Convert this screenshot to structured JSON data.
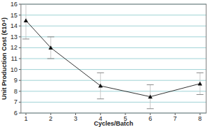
{
  "chart_data": {
    "type": "line",
    "x_label": "Cycles/Batch",
    "y_label": "Unit Production Cost (€10⁴)",
    "x": [
      1,
      2,
      4,
      6,
      8
    ],
    "values": [
      14.5,
      12.0,
      8.5,
      7.5,
      8.7
    ],
    "errors": [
      1.7,
      1.0,
      1.2,
      1.1,
      1.0
    ],
    "color": "#333333",
    "marker": "triangle",
    "xlim": [
      0.8,
      8.25
    ],
    "xticks": [
      1,
      2,
      3,
      4,
      5,
      6,
      7,
      8
    ],
    "ylim": [
      6,
      16
    ],
    "yticks": [
      6,
      7,
      8,
      9,
      10,
      11,
      12,
      13,
      14,
      15,
      16
    ],
    "grid": true
  }
}
